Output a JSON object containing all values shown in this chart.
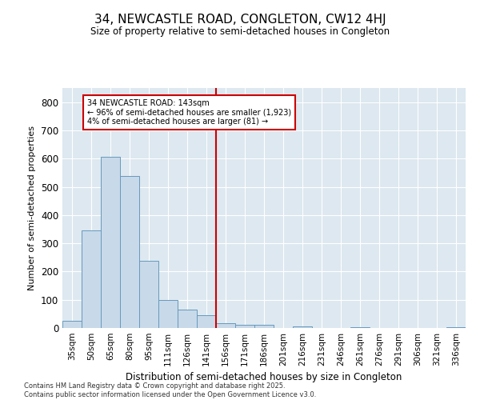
{
  "title": "34, NEWCASTLE ROAD, CONGLETON, CW12 4HJ",
  "subtitle": "Size of property relative to semi-detached houses in Congleton",
  "xlabel": "Distribution of semi-detached houses by size in Congleton",
  "ylabel": "Number of semi-detached properties",
  "bar_color": "#c8d9ea",
  "bar_edge_color": "#6699bb",
  "background_color": "#dde8f0",
  "grid_color": "#ffffff",
  "categories": [
    "35sqm",
    "50sqm",
    "65sqm",
    "80sqm",
    "95sqm",
    "111sqm",
    "126sqm",
    "141sqm",
    "156sqm",
    "171sqm",
    "186sqm",
    "201sqm",
    "216sqm",
    "231sqm",
    "246sqm",
    "261sqm",
    "276sqm",
    "291sqm",
    "306sqm",
    "321sqm",
    "336sqm"
  ],
  "values": [
    25,
    347,
    605,
    537,
    237,
    100,
    65,
    45,
    18,
    10,
    10,
    0,
    5,
    0,
    0,
    4,
    0,
    0,
    0,
    0,
    4
  ],
  "vline_x": 7.5,
  "vline_color": "#cc0000",
  "annotation_title": "34 NEWCASTLE ROAD: 143sqm",
  "annotation_line1": "← 96% of semi-detached houses are smaller (1,923)",
  "annotation_line2": "4% of semi-detached houses are larger (81) →",
  "annotation_box_color": "#cc0000",
  "ylim": [
    0,
    850
  ],
  "yticks": [
    0,
    100,
    200,
    300,
    400,
    500,
    600,
    700,
    800
  ],
  "footnote1": "Contains HM Land Registry data © Crown copyright and database right 2025.",
  "footnote2": "Contains public sector information licensed under the Open Government Licence v3.0."
}
